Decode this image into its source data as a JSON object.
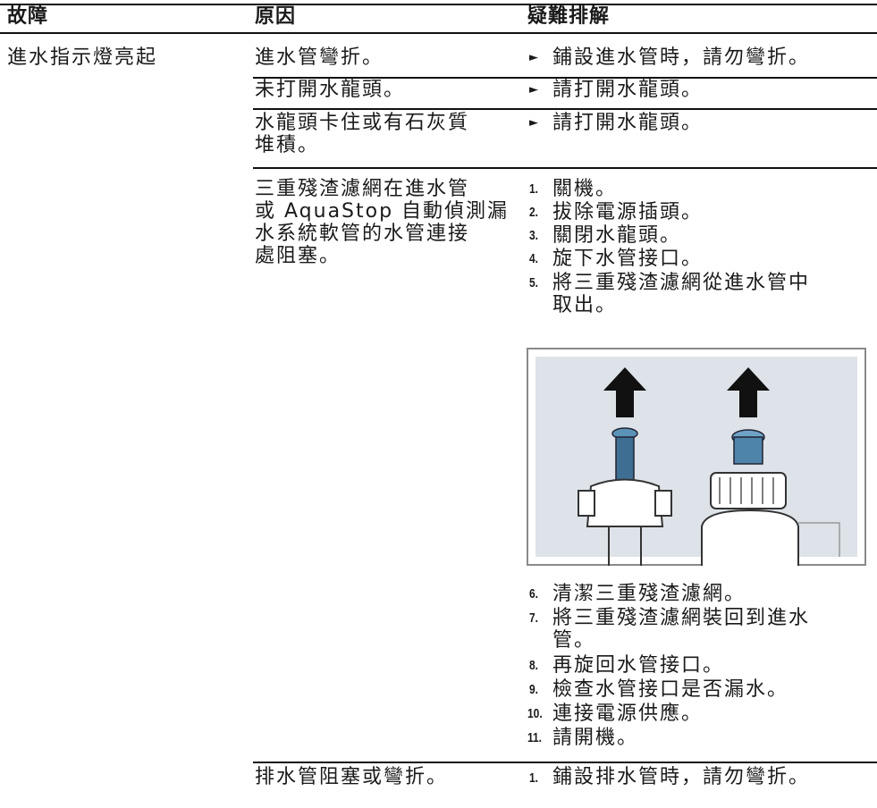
{
  "table": {
    "headers": [
      "故障",
      "原因",
      "疑難排解"
    ],
    "fault": "進水指示燈亮起",
    "rows": [
      {
        "cause": [
          "進水管彎折。"
        ],
        "solution": [
          "鋪設進水管時，請勿彎折。"
        ]
      },
      {
        "cause": [
          "未打開水龍頭。"
        ],
        "solution": [
          "請打開水龍頭。"
        ]
      },
      {
        "cause": [
          "水龍頭卡住或有石灰質",
          "堆積。"
        ],
        "solution": [
          "請打開水龍頭。"
        ]
      },
      {
        "cause": [
          "三重殘渣濾網在進水管",
          "或 AquaStop 自動偵測漏",
          "水系統軟管的水管連接",
          "處阻塞。"
        ],
        "steps": [
          {
            "number": "1.",
            "lines": [
              "關機。"
            ]
          },
          {
            "number": "2.",
            "lines": [
              "拔除電源插頭。"
            ]
          },
          {
            "number": "3.",
            "lines": [
              "關閉水龍頭。"
            ]
          },
          {
            "number": "4.",
            "lines": [
              "旋下水管接口。"
            ]
          },
          {
            "number": "5.",
            "lines": [
              "將三重殘渣濾網從進水管中",
              "取出。"
            ]
          },
          {
            "number": "6.",
            "lines": [
              "清潔三重殘渣濾網。"
            ]
          },
          {
            "number": "7.",
            "lines": [
              "將三重殘渣濾網裝回到進水",
              "管。"
            ]
          },
          {
            "number": "8.",
            "lines": [
              "再旋回水管接口。"
            ]
          },
          {
            "number": "9.",
            "lines": [
              "檢查水管接口是否漏水。"
            ]
          },
          {
            "number": "10.",
            "lines": [
              "連接電源供應。"
            ]
          },
          {
            "number": "11.",
            "lines": [
              "請開機。"
            ]
          }
        ]
      },
      {
        "cause": [
          "排水管阻塞或彎折。"
        ],
        "steps": [
          {
            "number": "1.",
            "lines": [
              "鋪設排水管時，請勿彎折。"
            ]
          }
        ]
      }
    ]
  }
}
